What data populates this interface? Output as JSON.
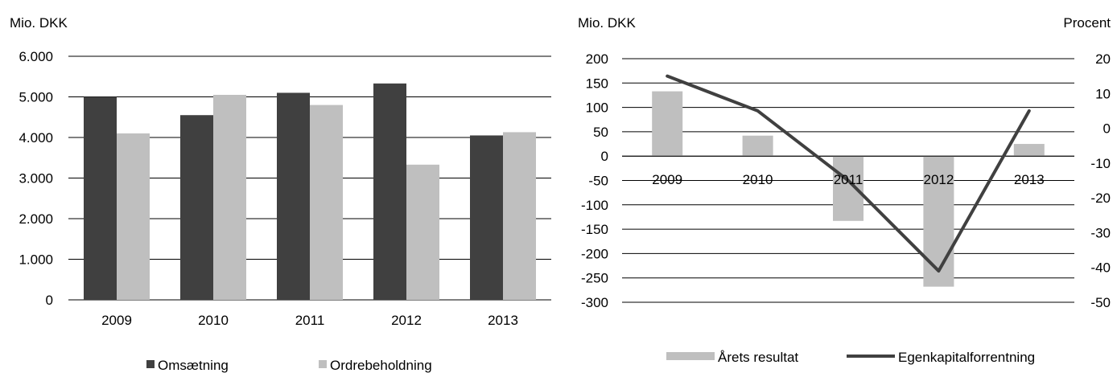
{
  "chart_data": [
    {
      "type": "bar",
      "ylabel": "Mio. DKK",
      "categories": [
        "2009",
        "2010",
        "2011",
        "2012",
        "2013"
      ],
      "ylim": [
        0,
        6000
      ],
      "yticks": [
        "0",
        "1.000",
        "2.000",
        "3.000",
        "4.000",
        "5.000",
        "6.000"
      ],
      "ytick_values": [
        0,
        1000,
        2000,
        3000,
        4000,
        5000,
        6000
      ],
      "grid": true,
      "legend_placement": "bottom",
      "series": [
        {
          "name": "Omsætning",
          "values": [
            5000,
            4550,
            5100,
            5330,
            4050
          ],
          "color": "#404040"
        },
        {
          "name": "Ordrebeholdning",
          "values": [
            4100,
            5050,
            4800,
            3330,
            4130
          ],
          "color": "#bfbfbf"
        }
      ]
    },
    {
      "type": "bar+line",
      "ylabel_left": "Mio. DKK",
      "ylabel_right": "Procent",
      "categories": [
        "2009",
        "2010",
        "2011",
        "2012",
        "2013"
      ],
      "ylim_left": [
        -300,
        200
      ],
      "ylim_right": [
        -50,
        20
      ],
      "yticks_left": [
        "-300",
        "-250",
        "-200",
        "-150",
        "-100",
        "-50",
        "0",
        "50",
        "100",
        "150",
        "200"
      ],
      "ytick_values_left": [
        -300,
        -250,
        -200,
        -150,
        -100,
        -50,
        0,
        50,
        100,
        150,
        200
      ],
      "yticks_right": [
        "-50",
        "-40",
        "-30",
        "-20",
        "-10",
        "0",
        "10",
        "20"
      ],
      "ytick_values_right": [
        -50,
        -40,
        -30,
        -20,
        -10,
        0,
        10,
        20
      ],
      "grid": true,
      "legend_placement": "bottom",
      "series": [
        {
          "name": "Årets resultat",
          "type": "bar",
          "axis": "left",
          "values": [
            133,
            42,
            -133,
            -268,
            25
          ],
          "color": "#bfbfbf"
        },
        {
          "name": "Egenkapitalforrentning",
          "type": "line",
          "axis": "right",
          "values": [
            15,
            5,
            -15,
            -41,
            5
          ],
          "color": "#404040"
        }
      ]
    }
  ]
}
